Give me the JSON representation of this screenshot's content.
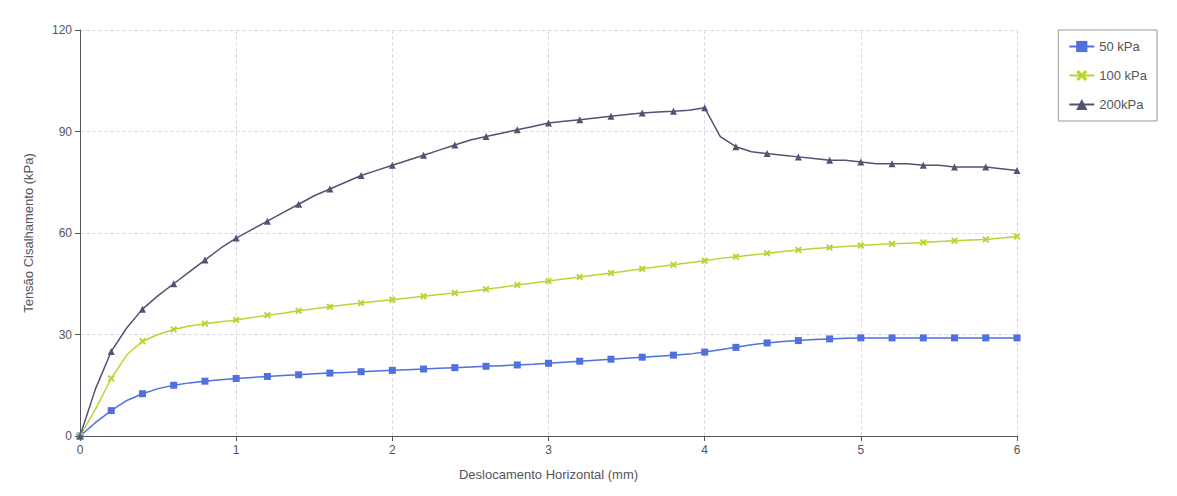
{
  "chart_data": {
    "type": "line",
    "xlabel": "Deslocamento Horizontal (mm)",
    "ylabel": "Tensão Cisalhamento (kPa)",
    "x": [
      0,
      0.1,
      0.2,
      0.3,
      0.4,
      0.5,
      0.6,
      0.7,
      0.8,
      0.9,
      1.0,
      1.1,
      1.2,
      1.3,
      1.4,
      1.5,
      1.6,
      1.7,
      1.8,
      1.9,
      2.0,
      2.1,
      2.2,
      2.3,
      2.4,
      2.5,
      2.6,
      2.7,
      2.8,
      2.9,
      3.0,
      3.1,
      3.2,
      3.3,
      3.4,
      3.5,
      3.6,
      3.7,
      3.8,
      3.9,
      4.0,
      4.1,
      4.2,
      4.3,
      4.4,
      4.5,
      4.6,
      4.7,
      4.8,
      4.9,
      5.0,
      5.1,
      5.2,
      5.3,
      5.4,
      5.5,
      5.6,
      5.7,
      5.8,
      5.9,
      6.0
    ],
    "series": [
      {
        "name": "50 kPa",
        "marker": "square",
        "values": [
          0,
          4,
          7.5,
          10.5,
          12.5,
          14.0,
          15.0,
          15.7,
          16.2,
          16.6,
          17.0,
          17.3,
          17.6,
          17.9,
          18.1,
          18.4,
          18.6,
          18.8,
          19.0,
          19.2,
          19.4,
          19.6,
          19.8,
          20.0,
          20.2,
          20.4,
          20.6,
          20.8,
          21.0,
          21.2,
          21.5,
          21.8,
          22.1,
          22.4,
          22.7,
          23.0,
          23.3,
          23.6,
          23.9,
          24.2,
          24.8,
          25.5,
          26.2,
          27.0,
          27.5,
          27.9,
          28.2,
          28.5,
          28.7,
          28.9,
          29.0,
          29.0,
          29.0,
          29.0,
          29.0,
          29.0,
          29.0,
          29.0,
          29.0,
          29.0,
          29.0
        ]
      },
      {
        "name": "100 kPa",
        "marker": "x",
        "values": [
          0,
          8,
          17,
          24,
          28,
          30,
          31.5,
          32.5,
          33.2,
          33.8,
          34.3,
          35.0,
          35.7,
          36.3,
          37.0,
          37.6,
          38.2,
          38.8,
          39.3,
          39.8,
          40.3,
          40.8,
          41.3,
          41.8,
          42.3,
          42.8,
          43.4,
          44.0,
          44.6,
          45.2,
          45.8,
          46.4,
          47.0,
          47.6,
          48.2,
          48.8,
          49.4,
          50.0,
          50.6,
          51.2,
          51.8,
          52.5,
          53.0,
          53.5,
          54.0,
          54.5,
          55.0,
          55.4,
          55.7,
          56.0,
          56.3,
          56.6,
          56.8,
          57.0,
          57.2,
          57.5,
          57.7,
          57.9,
          58.1,
          58.5,
          59.0
        ]
      },
      {
        "name": "200kPa",
        "marker": "triangle",
        "values": [
          0,
          14,
          25,
          32,
          37.5,
          41.5,
          45.0,
          48.5,
          52.0,
          55.5,
          58.5,
          61.0,
          63.5,
          66.0,
          68.5,
          71.0,
          73.0,
          75.0,
          77.0,
          78.5,
          80.0,
          81.5,
          83.0,
          84.5,
          86.0,
          87.5,
          88.5,
          89.5,
          90.5,
          91.5,
          92.5,
          93.0,
          93.5,
          94.0,
          94.5,
          95.0,
          95.5,
          95.8,
          96.0,
          96.3,
          97.0,
          88.5,
          85.5,
          84.0,
          83.5,
          83.0,
          82.5,
          82.0,
          81.5,
          81.5,
          81.0,
          80.5,
          80.5,
          80.5,
          80.0,
          80.0,
          79.5,
          79.5,
          79.5,
          79.0,
          78.5
        ]
      }
    ],
    "xlim": [
      0,
      6
    ],
    "ylim": [
      0,
      120
    ],
    "xticks": [
      0,
      1,
      2,
      3,
      4,
      5,
      6
    ],
    "yticks": [
      0,
      30,
      60,
      90,
      120
    ],
    "grid": true,
    "legend": "right"
  }
}
